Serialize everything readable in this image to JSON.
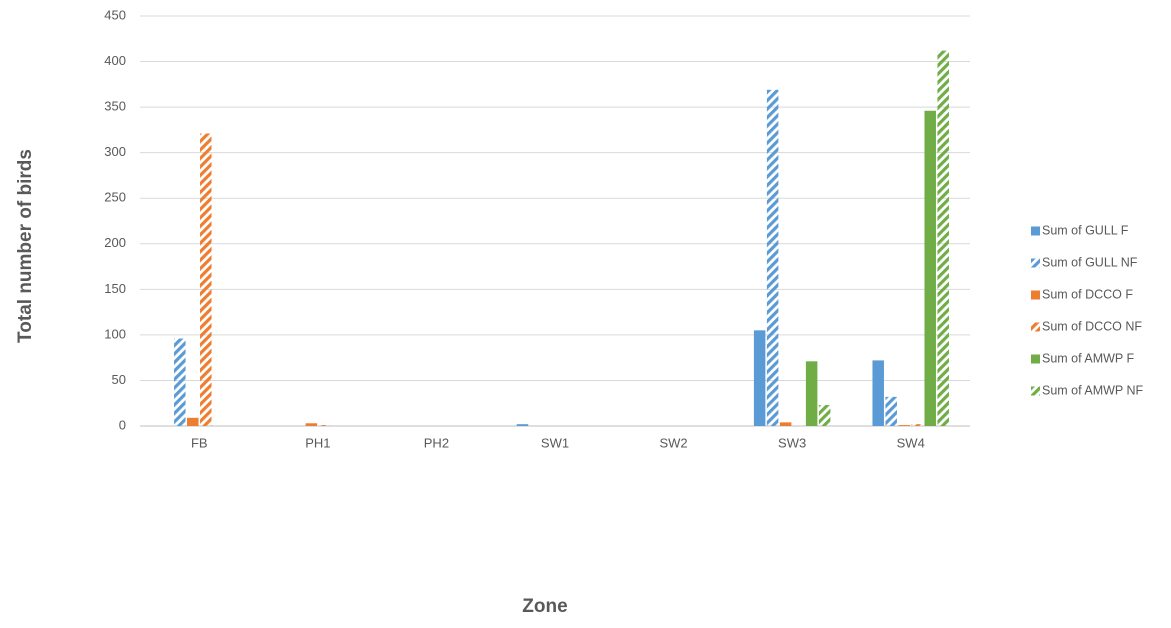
{
  "chart_data": {
    "type": "bar",
    "x_label": "Zone",
    "y_label": "Total number of birds",
    "categories": [
      "FB",
      "PH1",
      "PH2",
      "SW1",
      "SW2",
      "SW3",
      "SW4"
    ],
    "series": [
      {
        "name": "Sum of GULL F",
        "color": "#5b9bd5",
        "pattern": "solid",
        "values": [
          0,
          0,
          0,
          2,
          0,
          105,
          72
        ]
      },
      {
        "name": "Sum of GULL NF",
        "color": "#5b9bd5",
        "pattern": "hatch",
        "values": [
          96,
          0,
          0,
          0,
          0,
          369,
          32
        ]
      },
      {
        "name": "Sum of DCCO F",
        "color": "#ed7d31",
        "pattern": "solid",
        "values": [
          9,
          3,
          0,
          0,
          0,
          4,
          1
        ]
      },
      {
        "name": "Sum of DCCO NF",
        "color": "#ed7d31",
        "pattern": "hatch",
        "values": [
          321,
          1,
          0,
          0,
          0,
          0,
          2
        ]
      },
      {
        "name": "Sum of AMWP F",
        "color": "#70ad47",
        "pattern": "solid",
        "values": [
          0,
          0,
          0,
          0,
          0,
          71,
          346
        ]
      },
      {
        "name": "Sum of AMWP NF",
        "color": "#70ad47",
        "pattern": "hatch",
        "values": [
          0,
          0,
          0,
          0,
          0,
          23,
          412
        ]
      }
    ],
    "ylim": [
      0,
      450
    ],
    "yticks": [
      0,
      50,
      100,
      150,
      200,
      250,
      300,
      350,
      400,
      450
    ],
    "grid": true,
    "legend": "right"
  }
}
